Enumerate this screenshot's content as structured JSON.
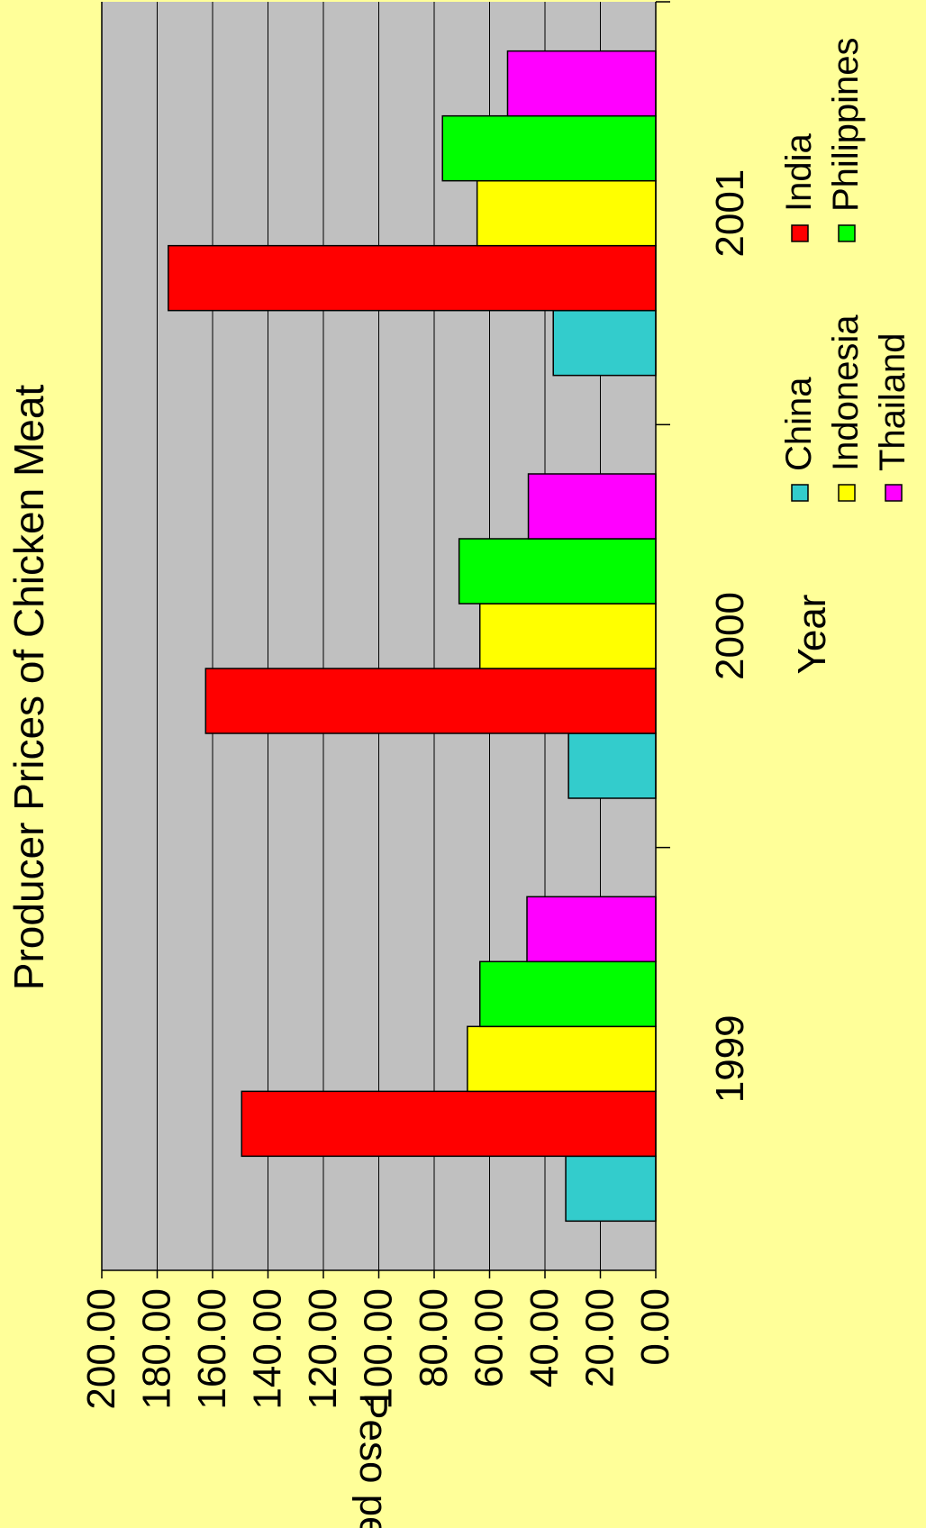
{
  "chart_data": {
    "type": "bar",
    "title": "Producer Prices of  Chicken Meat",
    "xlabel": "Year",
    "ylabel": "Peso per K",
    "categories": [
      "1999",
      "2000",
      "2001"
    ],
    "ylim": [
      0,
      200
    ],
    "yticks": [
      "0.00",
      "20.00",
      "40.00",
      "60.00",
      "80.00",
      "100.00",
      "120.00",
      "140.00",
      "160.00",
      "180.00",
      "200.00"
    ],
    "grid": true,
    "legend_position": "bottom",
    "series": [
      {
        "name": "China",
        "color": "#33CCCC",
        "values": [
          32.5,
          31.5,
          37.0
        ]
      },
      {
        "name": "India",
        "color": "#FF0000",
        "values": [
          149.5,
          162.5,
          176.0
        ]
      },
      {
        "name": "Indonesia",
        "color": "#FFFF00",
        "values": [
          68.0,
          63.5,
          64.5
        ]
      },
      {
        "name": "Philippines",
        "color": "#00FF00",
        "values": [
          63.5,
          71.0,
          77.0
        ]
      },
      {
        "name": "Thailand",
        "color": "#FF00FF",
        "values": [
          46.5,
          46.0,
          53.5
        ]
      }
    ],
    "colors": {
      "plot_background": "#C0C0C0",
      "page_background": "#FFFF99"
    }
  }
}
